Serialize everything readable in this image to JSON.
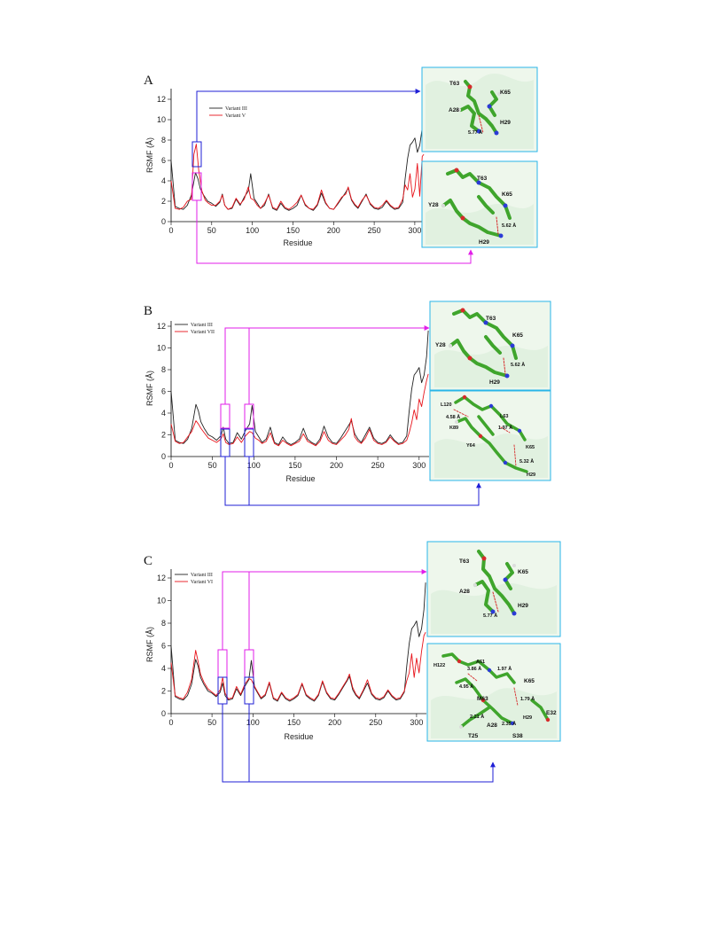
{
  "colors": {
    "series1": "#222222",
    "series2": "#e8141b",
    "blue": "#1f1fd6",
    "magenta": "#e21ee8",
    "inset_border": "#29b6e8",
    "inset_bg": "#eef7ec"
  },
  "panels": [
    {
      "letter": "A",
      "legend": [
        "Variant III",
        "Variant V"
      ],
      "ylabel": "RSMF (Å)",
      "xlabel": "Residue",
      "yticks": [
        "0",
        "2",
        "4",
        "6",
        "8",
        "10",
        "12"
      ],
      "xticks": [
        "0",
        "50",
        "100",
        "150",
        "200",
        "250",
        "300"
      ],
      "insets": [
        {
          "labels": [
            "T63",
            "K65",
            "A28",
            "H29"
          ],
          "distances": [
            "5.77 Å"
          ]
        },
        {
          "labels": [
            "T63",
            "K65",
            "Y28",
            "H29"
          ],
          "distances": [
            "5.62 Å"
          ]
        }
      ]
    },
    {
      "letter": "B",
      "legend": [
        "Variant III",
        "Variant VII"
      ],
      "ylabel": "RSMF (Å)",
      "xlabel": "Residue",
      "yticks": [
        "0",
        "2",
        "4",
        "6",
        "8",
        "10",
        "12"
      ],
      "xticks": [
        "0",
        "50",
        "100",
        "150",
        "200",
        "250",
        "300"
      ],
      "insets": [
        {
          "labels": [
            "T63",
            "K65",
            "Y28",
            "H29"
          ],
          "distances": [
            "5.62 Å"
          ]
        },
        {
          "labels": [
            "L120",
            "L63",
            "K89",
            "Y64",
            "K65",
            "H29"
          ],
          "distances": [
            "4.58 Å",
            "1.97 Å",
            "5.32 Å"
          ]
        }
      ]
    },
    {
      "letter": "C",
      "legend": [
        "Variant III",
        "Variant VI"
      ],
      "ylabel": "RSMF (Å)",
      "xlabel": "Residue",
      "yticks": [
        "0",
        "2",
        "4",
        "6",
        "8",
        "10",
        "12"
      ],
      "xticks": [
        "0",
        "50",
        "100",
        "150",
        "200",
        "250",
        "300"
      ],
      "insets": [
        {
          "labels": [
            "T63",
            "K65",
            "A28",
            "H29"
          ],
          "distances": [
            "5.77 Å"
          ]
        },
        {
          "labels": [
            "H122",
            "A61",
            "K65",
            "M63",
            "H29",
            "E32",
            "A28",
            "T25",
            "S38"
          ],
          "distances": [
            "3.86 Å",
            "1.97 Å",
            "4.95 Å",
            "1.79 Å",
            "2.21 Å",
            "2.35 Å"
          ]
        }
      ]
    }
  ],
  "chart_data": [
    {
      "type": "line",
      "xlabel": "Residue",
      "ylabel": "RSMF (Å)",
      "xlim": [
        0,
        312
      ],
      "ylim": [
        0,
        12.5
      ],
      "series": [
        {
          "name": "Variant III",
          "x": [
            0,
            5,
            10,
            15,
            20,
            25,
            30,
            33,
            36,
            40,
            45,
            50,
            55,
            60,
            63,
            66,
            70,
            75,
            80,
            85,
            90,
            95,
            98,
            102,
            106,
            110,
            115,
            120,
            125,
            130,
            135,
            140,
            145,
            150,
            155,
            160,
            165,
            170,
            175,
            180,
            185,
            190,
            195,
            200,
            205,
            210,
            215,
            218,
            222,
            226,
            230,
            235,
            240,
            245,
            250,
            255,
            260,
            265,
            270,
            275,
            280,
            285,
            288,
            291,
            294,
            297,
            300,
            303,
            306,
            309,
            311
          ],
          "values": [
            6.0,
            1.5,
            1.3,
            1.2,
            1.6,
            2.6,
            4.8,
            4.2,
            3.2,
            2.6,
            2.0,
            1.8,
            1.5,
            1.9,
            2.7,
            1.6,
            1.2,
            1.3,
            2.2,
            1.6,
            2.4,
            3.0,
            4.7,
            2.3,
            1.8,
            1.3,
            1.6,
            2.7,
            1.3,
            1.1,
            1.8,
            1.3,
            1.1,
            1.3,
            1.6,
            2.6,
            1.6,
            1.3,
            1.1,
            1.6,
            2.8,
            1.8,
            1.3,
            1.2,
            1.7,
            2.3,
            2.9,
            3.3,
            2.1,
            1.6,
            1.3,
            2.0,
            2.7,
            1.7,
            1.3,
            1.2,
            1.4,
            2.0,
            1.5,
            1.2,
            1.3,
            1.9,
            4.2,
            6.2,
            7.5,
            7.8,
            8.2,
            6.8,
            7.5,
            9.2,
            11.6
          ]
        },
        {
          "name": "Variant V",
          "x": [
            0,
            5,
            10,
            15,
            20,
            25,
            28,
            31,
            34,
            38,
            42,
            46,
            50,
            55,
            60,
            63,
            66,
            70,
            75,
            80,
            85,
            90,
            95,
            98,
            102,
            106,
            110,
            115,
            120,
            125,
            130,
            135,
            140,
            145,
            150,
            155,
            160,
            165,
            170,
            175,
            180,
            185,
            190,
            195,
            200,
            205,
            210,
            215,
            218,
            222,
            226,
            230,
            235,
            240,
            245,
            250,
            255,
            260,
            265,
            270,
            275,
            280,
            285,
            288,
            291,
            294,
            297,
            300,
            303,
            306,
            309,
            311
          ],
          "values": [
            4.0,
            1.3,
            1.2,
            1.4,
            2.0,
            2.2,
            6.6,
            7.6,
            5.0,
            3.0,
            2.1,
            1.8,
            1.6,
            1.6,
            2.0,
            2.6,
            1.6,
            1.2,
            1.4,
            2.3,
            1.7,
            2.2,
            3.4,
            2.3,
            2.1,
            1.6,
            1.3,
            1.8,
            2.6,
            1.4,
            1.2,
            2.0,
            1.4,
            1.2,
            1.5,
            1.9,
            2.6,
            1.7,
            1.3,
            1.2,
            1.7,
            3.1,
            1.9,
            1.3,
            1.2,
            1.8,
            2.4,
            2.7,
            3.4,
            2.2,
            1.7,
            1.4,
            2.1,
            2.6,
            1.8,
            1.4,
            1.3,
            1.6,
            2.1,
            1.6,
            1.3,
            1.4,
            2.2,
            3.6,
            3.1,
            4.7,
            2.4,
            3.2,
            5.7,
            2.5,
            6.4,
            6.6
          ]
        }
      ]
    },
    {
      "type": "line",
      "xlabel": "Residue",
      "ylabel": "RSMF (Å)",
      "xlim": [
        0,
        312
      ],
      "ylim": [
        0,
        12.5
      ],
      "series": [
        {
          "name": "Variant III",
          "x": [
            0,
            5,
            10,
            15,
            20,
            25,
            30,
            33,
            36,
            40,
            45,
            50,
            55,
            60,
            63,
            66,
            70,
            75,
            80,
            85,
            90,
            95,
            98,
            102,
            106,
            110,
            115,
            120,
            125,
            130,
            135,
            140,
            145,
            150,
            155,
            160,
            165,
            170,
            175,
            180,
            185,
            190,
            195,
            200,
            205,
            210,
            215,
            218,
            222,
            226,
            230,
            235,
            240,
            245,
            250,
            255,
            260,
            265,
            270,
            275,
            280,
            285,
            288,
            291,
            294,
            297,
            300,
            303,
            306,
            309,
            311
          ],
          "values": [
            6.0,
            1.5,
            1.3,
            1.2,
            1.6,
            2.6,
            4.8,
            4.2,
            3.2,
            2.6,
            2.0,
            1.8,
            1.5,
            1.9,
            2.7,
            1.6,
            1.2,
            1.3,
            2.2,
            1.6,
            2.4,
            3.0,
            4.7,
            2.3,
            1.8,
            1.3,
            1.6,
            2.7,
            1.3,
            1.1,
            1.8,
            1.3,
            1.1,
            1.3,
            1.6,
            2.6,
            1.6,
            1.3,
            1.1,
            1.6,
            2.8,
            1.8,
            1.3,
            1.2,
            1.7,
            2.3,
            2.9,
            3.3,
            2.1,
            1.6,
            1.3,
            2.0,
            2.7,
            1.7,
            1.3,
            1.2,
            1.4,
            2.0,
            1.5,
            1.2,
            1.3,
            1.9,
            4.2,
            6.2,
            7.5,
            7.8,
            8.2,
            6.8,
            7.5,
            9.2,
            11.6
          ]
        },
        {
          "name": "Variant VII",
          "x": [
            0,
            5,
            10,
            15,
            20,
            25,
            30,
            33,
            36,
            40,
            45,
            50,
            55,
            60,
            63,
            66,
            70,
            75,
            80,
            85,
            90,
            95,
            98,
            102,
            106,
            110,
            115,
            120,
            125,
            130,
            135,
            140,
            145,
            150,
            155,
            160,
            165,
            170,
            175,
            180,
            185,
            190,
            195,
            200,
            205,
            210,
            215,
            218,
            222,
            226,
            230,
            235,
            240,
            245,
            250,
            255,
            260,
            265,
            270,
            275,
            280,
            285,
            288,
            291,
            294,
            297,
            300,
            303,
            306,
            309,
            311
          ],
          "values": [
            3.0,
            1.4,
            1.2,
            1.3,
            1.8,
            2.3,
            3.3,
            3.0,
            2.6,
            2.2,
            1.7,
            1.5,
            1.3,
            1.6,
            2.1,
            1.3,
            1.1,
            1.2,
            1.8,
            1.3,
            1.9,
            2.3,
            2.2,
            1.7,
            1.5,
            1.2,
            1.4,
            2.2,
            1.2,
            1.0,
            1.5,
            1.2,
            1.0,
            1.2,
            1.4,
            2.1,
            1.4,
            1.2,
            1.0,
            1.4,
            2.3,
            1.5,
            1.2,
            1.1,
            1.5,
            1.9,
            2.5,
            3.5,
            1.8,
            1.4,
            1.2,
            1.7,
            2.5,
            1.5,
            1.2,
            1.1,
            1.3,
            1.8,
            1.4,
            1.1,
            1.2,
            1.5,
            2.2,
            3.1,
            4.3,
            3.4,
            5.3,
            4.6,
            5.9,
            7.0,
            7.6
          ]
        }
      ]
    },
    {
      "type": "line",
      "xlabel": "Residue",
      "ylabel": "RSMF (Å)",
      "xlim": [
        0,
        312
      ],
      "ylim": [
        0,
        12.5
      ],
      "series": [
        {
          "name": "Variant III",
          "x": [
            0,
            5,
            10,
            15,
            20,
            25,
            30,
            33,
            36,
            40,
            45,
            50,
            55,
            60,
            63,
            66,
            70,
            75,
            80,
            85,
            90,
            95,
            98,
            102,
            106,
            110,
            115,
            120,
            125,
            130,
            135,
            140,
            145,
            150,
            155,
            160,
            165,
            170,
            175,
            180,
            185,
            190,
            195,
            200,
            205,
            210,
            215,
            218,
            222,
            226,
            230,
            235,
            240,
            245,
            250,
            255,
            260,
            265,
            270,
            275,
            280,
            285,
            288,
            291,
            294,
            297,
            300,
            303,
            306,
            309,
            311
          ],
          "values": [
            6.0,
            1.5,
            1.3,
            1.2,
            1.6,
            2.6,
            4.8,
            4.2,
            3.2,
            2.6,
            2.0,
            1.8,
            1.5,
            1.9,
            2.7,
            1.6,
            1.2,
            1.3,
            2.2,
            1.6,
            2.4,
            3.0,
            4.7,
            2.3,
            1.8,
            1.3,
            1.6,
            2.7,
            1.3,
            1.1,
            1.8,
            1.3,
            1.1,
            1.3,
            1.6,
            2.6,
            1.6,
            1.3,
            1.1,
            1.6,
            2.8,
            1.8,
            1.3,
            1.2,
            1.7,
            2.3,
            2.9,
            3.3,
            2.1,
            1.6,
            1.3,
            2.0,
            2.7,
            1.7,
            1.3,
            1.2,
            1.4,
            2.0,
            1.5,
            1.2,
            1.3,
            1.9,
            4.2,
            6.2,
            7.5,
            7.8,
            8.2,
            6.8,
            7.5,
            9.2,
            11.6
          ]
        },
        {
          "name": "Variant VI",
          "x": [
            0,
            5,
            10,
            15,
            20,
            25,
            30,
            33,
            36,
            40,
            45,
            50,
            55,
            60,
            63,
            66,
            70,
            75,
            80,
            85,
            90,
            95,
            98,
            102,
            106,
            110,
            115,
            120,
            125,
            130,
            135,
            140,
            145,
            150,
            155,
            160,
            165,
            170,
            175,
            180,
            185,
            190,
            195,
            200,
            205,
            210,
            215,
            218,
            222,
            226,
            230,
            235,
            240,
            245,
            250,
            255,
            260,
            265,
            270,
            275,
            280,
            285,
            288,
            291,
            294,
            297,
            300,
            303,
            306,
            309,
            311
          ],
          "values": [
            4.5,
            1.6,
            1.4,
            1.3,
            1.9,
            3.0,
            5.6,
            4.6,
            3.5,
            2.8,
            2.2,
            1.9,
            1.6,
            2.1,
            3.2,
            1.8,
            1.3,
            1.4,
            2.4,
            1.7,
            2.6,
            3.1,
            3.0,
            2.4,
            1.9,
            1.4,
            1.7,
            2.8,
            1.4,
            1.2,
            1.9,
            1.4,
            1.2,
            1.4,
            1.7,
            2.7,
            1.7,
            1.4,
            1.2,
            1.7,
            2.9,
            1.9,
            1.4,
            1.3,
            1.8,
            2.4,
            3.0,
            3.5,
            2.3,
            1.7,
            1.4,
            2.1,
            3.0,
            1.8,
            1.4,
            1.3,
            1.5,
            2.1,
            1.6,
            1.3,
            1.4,
            2.0,
            2.9,
            3.6,
            5.3,
            3.2,
            4.9,
            3.6,
            5.5,
            6.9,
            7.2
          ]
        }
      ]
    }
  ]
}
